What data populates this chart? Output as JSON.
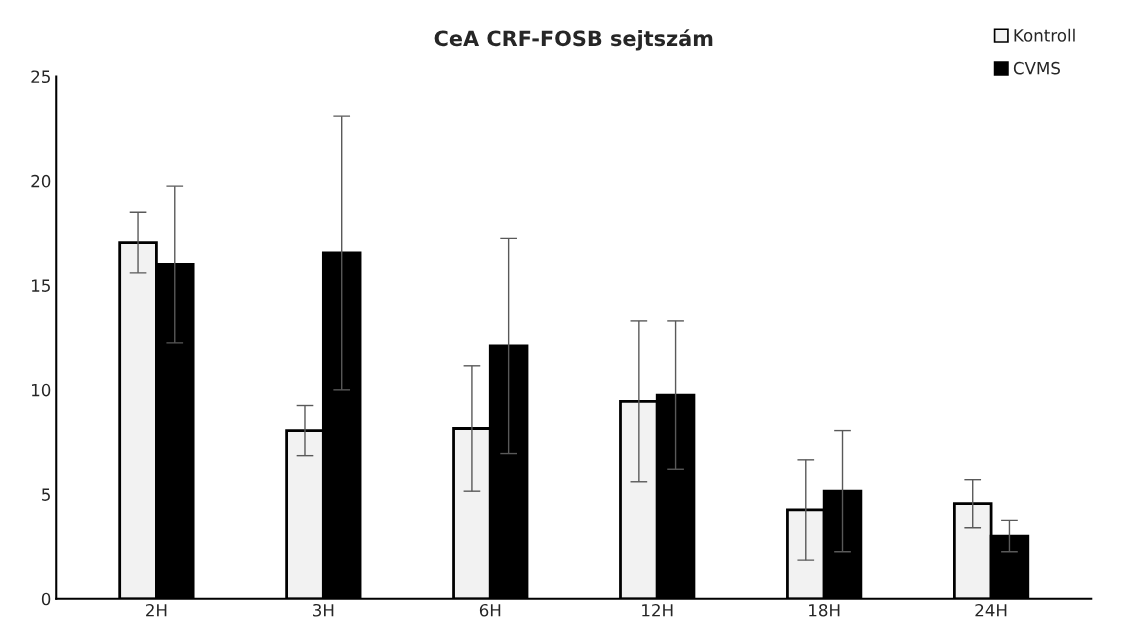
{
  "chart_data": {
    "type": "bar",
    "title": "CeA CRF-FOSB sejtszám",
    "categories": [
      "2H",
      "3H",
      "6H",
      "12H",
      "18H",
      "24H"
    ],
    "series": [
      {
        "name": "Kontroll",
        "color": "#f2f2f2",
        "values": [
          17.05,
          8.05,
          8.15,
          9.45,
          4.25,
          4.55
        ],
        "errors": [
          1.45,
          1.2,
          3.0,
          3.85,
          2.4,
          1.15
        ]
      },
      {
        "name": "CVMS",
        "color": "#000000",
        "values": [
          16.0,
          16.55,
          12.1,
          9.75,
          5.15,
          3.0
        ],
        "errors": [
          3.75,
          6.55,
          5.15,
          3.55,
          2.9,
          0.75
        ]
      }
    ],
    "ylim": [
      0,
      25
    ],
    "yticks": [
      0,
      5,
      10,
      15,
      20,
      25
    ],
    "grid": false,
    "legend": "top right"
  }
}
